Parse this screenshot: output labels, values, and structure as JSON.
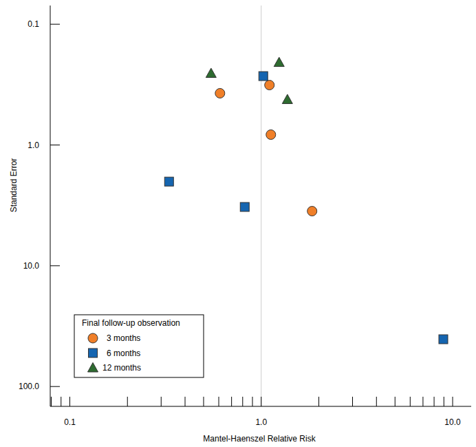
{
  "chart_data": {
    "type": "scatter",
    "x_label": "Mantel-Haenszel Relative Risk",
    "y_label": "Standard Error",
    "legend_title": "Final follow-up observation",
    "legend": "bottom-left",
    "log": true,
    "grid": false,
    "reference_x": 1,
    "xlim": [
      0.079,
      12.5
    ],
    "ylim": [
      146,
      0.07
    ],
    "xticks": [
      0.1,
      {
        "value": 1,
        "label": "1.0"
      },
      {
        "value": 10,
        "label": "10.0"
      }
    ],
    "yticks": [
      0.1,
      {
        "value": 1,
        "label": "1.0"
      },
      {
        "value": 10,
        "label": "10.0"
      },
      {
        "value": 100,
        "label": "100.0"
      }
    ],
    "series": [
      {
        "name": "3 months",
        "color": "#f07f28",
        "marker": "circle",
        "x": [
          0.609,
          1.104,
          1.123,
          1.844
        ],
        "values": [
          0.373,
          0.319,
          0.821,
          3.53
        ]
      },
      {
        "name": "6 months",
        "color": "#1565b0",
        "marker": "square",
        "x": [
          1.025,
          0.33,
          0.82,
          8.94
        ],
        "values": [
          0.269,
          2.01,
          3.26,
          40.6
        ]
      },
      {
        "name": "12 months",
        "color": "#2e6b30",
        "marker": "triangle",
        "x": [
          0.547,
          1.24,
          1.37
        ],
        "values": [
          0.255,
          0.207,
          0.42
        ]
      }
    ]
  }
}
